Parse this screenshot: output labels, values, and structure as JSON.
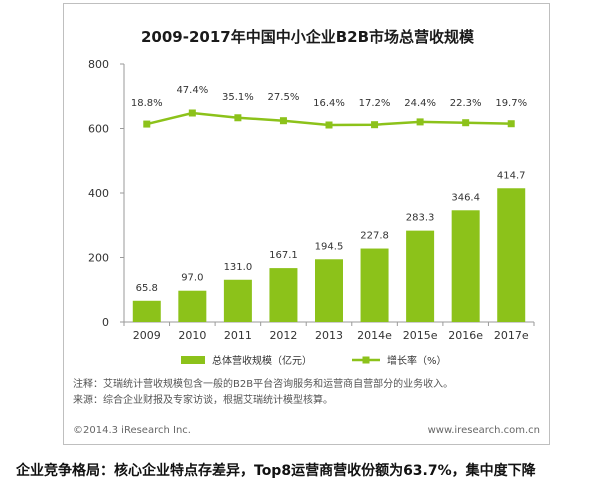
{
  "chart_data": {
    "type": "bar",
    "title": "2009-2017年中国中小企业B2B市场总营收规模",
    "categories": [
      "2009",
      "2010",
      "2011",
      "2012",
      "2013",
      "2014e",
      "2015e",
      "2016e",
      "2017e"
    ],
    "ylim": [
      0,
      800
    ],
    "yticks": [
      "0",
      "200",
      "400",
      "600",
      "800"
    ],
    "series": [
      {
        "name": "总体营收规模（亿元）",
        "type": "bar",
        "color": "#8cc21a",
        "values": [
          65.8,
          97.0,
          131.0,
          167.1,
          194.5,
          227.8,
          283.3,
          346.4,
          414.7
        ],
        "labels": [
          "65.8",
          "97.0",
          "131.0",
          "167.1",
          "194.5",
          "227.8",
          "283.3",
          "346.4",
          "414.7"
        ]
      },
      {
        "name": "增长率（%）",
        "type": "line",
        "color": "#8cc21a",
        "values": [
          18.8,
          47.4,
          35.1,
          27.5,
          16.4,
          17.2,
          24.4,
          22.3,
          19.7
        ],
        "labels": [
          "18.8%",
          "47.4%",
          "35.1%",
          "27.5%",
          "16.4%",
          "17.2%",
          "24.4%",
          "22.3%",
          "19.7%"
        ]
      }
    ],
    "legend": "bottom",
    "grid": false
  },
  "notes": [
    "注释：艾瑞统计营收规模包含一般的B2B平台咨询服务和运营商自营部分的业务收入。",
    "来源：综合企业财报及专家访谈，根据艾瑞统计模型核算。"
  ],
  "footer": {
    "copyright": "©2014.3 iResearch Inc.",
    "website": "www.iresearch.com.cn"
  },
  "article_heading": "企业竞争格局：核心企业特点存差异，Top8运营商营收份额为63.7%，集中度下降"
}
